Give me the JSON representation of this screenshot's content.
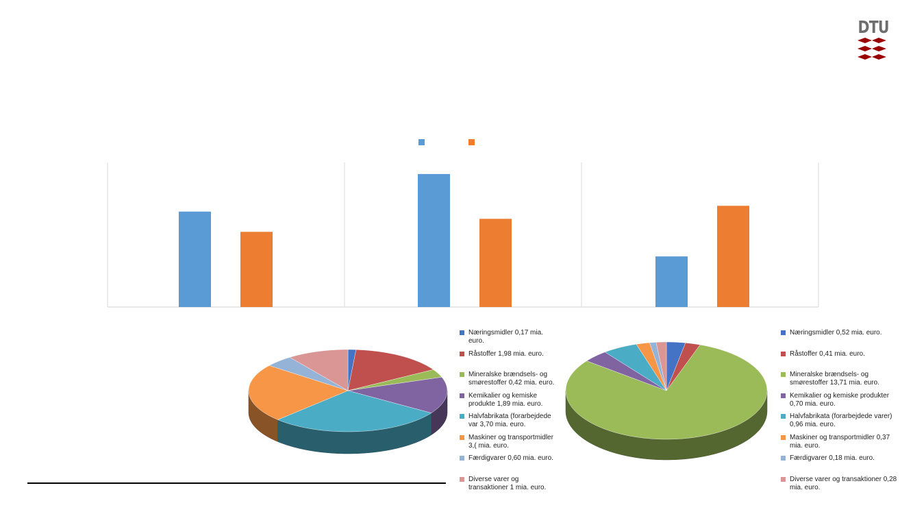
{
  "logo": {
    "text": "DTU",
    "color": "#990000"
  },
  "colors": {
    "bar_series_1": "#5b9bd5",
    "bar_series_2": "#ed7d31",
    "gridline": "#d9d9d9"
  },
  "chart_data": [
    {
      "type": "bar",
      "legend_position": "top",
      "grid": true,
      "categories": [
        "",
        "",
        ""
      ],
      "series": [
        {
          "values": [
            0.66,
            0.92,
            0.35
          ]
        },
        {
          "values": [
            0.52,
            0.61,
            0.7
          ]
        }
      ],
      "ylim": [
        0,
        1
      ]
    },
    {
      "type": "pie",
      "style": "3d",
      "legend_position": "right",
      "slices": [
        {
          "label": "Næringsmidler 0,17 mia. euro.",
          "value": 0.17,
          "color": "#4472c4"
        },
        {
          "label": "Råstoffer 1,98 mia. euro.",
          "value": 1.98,
          "color": "#c0504d"
        },
        {
          "label": "Mineralske brændsels- og smørestoffer 0,42 mia. euro.",
          "value": 0.42,
          "color": "#9bbb59"
        },
        {
          "label": "Kemikalier og kemiske produkte 1,89 mia. euro.",
          "value": 1.89,
          "color": "#8064a2"
        },
        {
          "label": "Halvfabrikata (forarbejdede var 3,70 mia. euro.",
          "value": 3.7,
          "color": "#4bacc6"
        },
        {
          "label": "Maskiner og transportmidler 3,( mia. euro.",
          "value": 3.0,
          "color": "#f79646"
        },
        {
          "label": "Færdigvarer 0,60 mia. euro.",
          "value": 0.6,
          "color": "#95b3d7"
        },
        {
          "label": "Diverse varer og transaktioner 1 mia. euro.",
          "value": 1.3,
          "color": "#d99694"
        }
      ]
    },
    {
      "type": "pie",
      "style": "3d",
      "legend_position": "right",
      "slices": [
        {
          "label": "Næringsmidler 0,52 mia. euro.",
          "value": 0.52,
          "color": "#4472c4"
        },
        {
          "label": "Råstoffer 0,41 mia. euro.",
          "value": 0.41,
          "color": "#c0504d"
        },
        {
          "label": "Mineralske brændsels- og smørestoffer 13,71 mia. euro.",
          "value": 13.71,
          "color": "#9bbb59"
        },
        {
          "label": "Kemikalier og kemiske produkter 0,70 mia. euro.",
          "value": 0.7,
          "color": "#8064a2"
        },
        {
          "label": "Halvfabrikata (forarbejdede varer) 0,96 mia. euro.",
          "value": 0.96,
          "color": "#4bacc6"
        },
        {
          "label": "Maskiner og transportmidler 0,37 mia. euro.",
          "value": 0.37,
          "color": "#f79646"
        },
        {
          "label": "Færdigvarer 0,18 mia. euro.",
          "value": 0.18,
          "color": "#95b3d7"
        },
        {
          "label": "Diverse varer og transaktioner 0,28 mia. euro.",
          "value": 0.28,
          "color": "#d99694"
        }
      ]
    }
  ]
}
